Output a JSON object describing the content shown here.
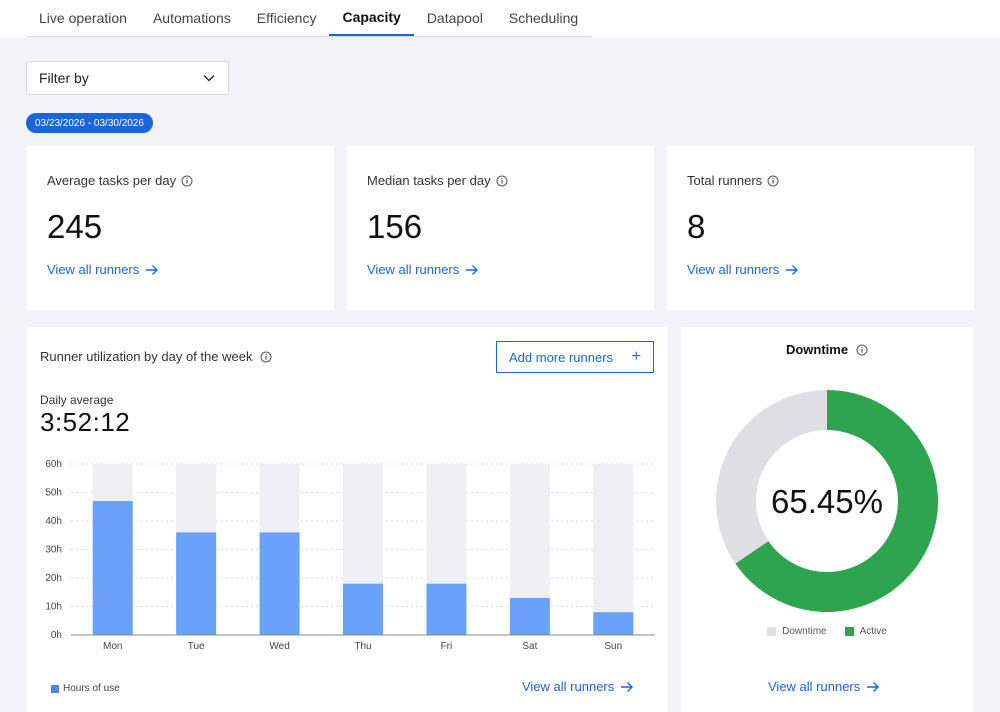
{
  "tabs": [
    "Live operation",
    "Automations",
    "Efficiency",
    "Capacity",
    "Datapool",
    "Scheduling"
  ],
  "active_tab": "Capacity",
  "filter": {
    "label": "Filter by"
  },
  "date_range": "03/23/2026 - 03/30/2026",
  "stats": [
    {
      "title": "Average tasks per day",
      "value": "245",
      "link": "View all runners"
    },
    {
      "title": "Median tasks per day",
      "value": "156",
      "link": "View all runners"
    },
    {
      "title": "Total runners",
      "value": "8",
      "link": "View all runners"
    }
  ],
  "utilization": {
    "title": "Runner utilization by day of the week",
    "add_button": "Add more runners",
    "avg_label": "Daily average",
    "avg_value": "3:52:12",
    "legend": "Hours of use",
    "link": "View all runners"
  },
  "downtime": {
    "title": "Downtime",
    "percent_label": "65.45%",
    "legend": [
      "Downtime",
      "Active"
    ],
    "link": "View all runners"
  },
  "colors": {
    "accent": "#1a66d9",
    "bar": "#6aa2fb",
    "bar_bg": "#eeeff2",
    "active": "#2ea44f",
    "downtime": "#dddfe3"
  },
  "chart_data": [
    {
      "type": "bar",
      "categories": [
        "Mon",
        "Tue",
        "Wed",
        "Thu",
        "Fri",
        "Sat",
        "Sun"
      ],
      "series": [
        {
          "name": "Hours of use",
          "values": [
            47,
            36,
            36,
            18,
            18,
            13,
            8
          ]
        }
      ],
      "yticks": [
        "0h",
        "10h",
        "20h",
        "30h",
        "40h",
        "50h",
        "60h"
      ],
      "ylim": [
        0,
        60
      ],
      "grid": true
    },
    {
      "type": "pie",
      "labels": [
        "Downtime",
        "Active"
      ],
      "values": [
        34.55,
        65.45
      ]
    }
  ]
}
